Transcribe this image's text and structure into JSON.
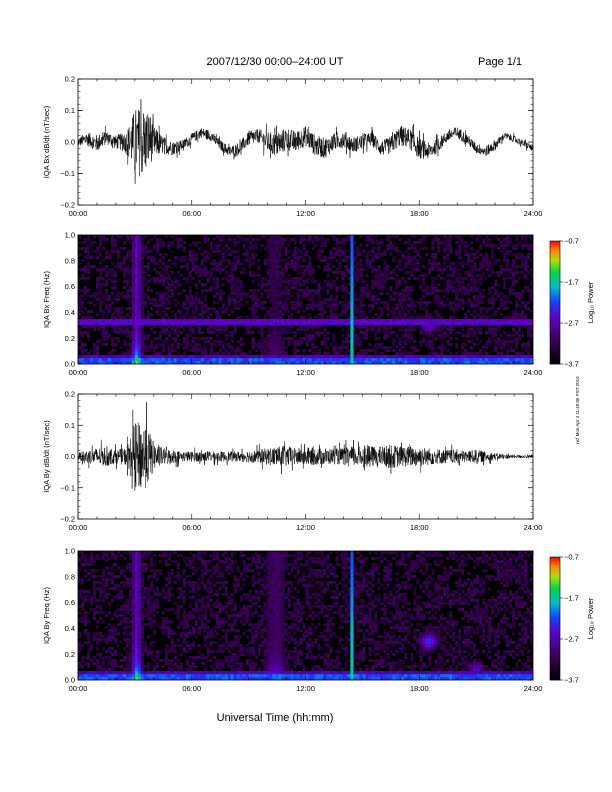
{
  "header": {
    "title": "2007/12/30  00:00–24:00 UT",
    "page_label": "Page 1/1"
  },
  "footer": {
    "xlabel": "Universal Time (hh:mm)",
    "side_note": "ncf Mon Apr 4 11:49:06 PST 2016"
  },
  "chart_data": [
    {
      "type": "line",
      "ylabel": "IQA Bx dB/dt (nT/sec)",
      "xlim": [
        0,
        24
      ],
      "ylim": [
        -0.2,
        0.2
      ],
      "x_tick_labels": [
        "00:00",
        "06:00",
        "12:00",
        "18:00",
        "24:00"
      ],
      "y_tick_labels": [
        "0.2",
        "0.1",
        "0.0",
        "−0.1",
        "−0.2"
      ],
      "series": [
        {
          "x": [
            0,
            0.5,
            1,
            1.5,
            2,
            2.5,
            2.8,
            3,
            3.2,
            3.5,
            3.8,
            4,
            4.5,
            5,
            5.5,
            6,
            6.5,
            7,
            7.5,
            8,
            8.5,
            9,
            9.5,
            10,
            10.5,
            11,
            11.5,
            12,
            12.5,
            13,
            13.5,
            14,
            14.5,
            15,
            15.5,
            16,
            16.5,
            17,
            17.5,
            18,
            18.5,
            19,
            19.5,
            20,
            20.5,
            21,
            21.5,
            22,
            22.5,
            23,
            23.5,
            24
          ],
          "amplitude": [
            0.025,
            0.04,
            0.05,
            0.04,
            0.04,
            0.06,
            0.12,
            0.2,
            0.2,
            0.2,
            0.15,
            0.09,
            0.05,
            0.04,
            0.03,
            0.03,
            0.03,
            0.03,
            0.03,
            0.03,
            0.035,
            0.04,
            0.04,
            0.06,
            0.07,
            0.07,
            0.06,
            0.06,
            0.06,
            0.06,
            0.05,
            0.05,
            0.045,
            0.045,
            0.04,
            0.045,
            0.05,
            0.06,
            0.06,
            0.06,
            0.05,
            0.04,
            0.035,
            0.035,
            0.03,
            0.03,
            0.03,
            0.03,
            0.02,
            0.02,
            0.02,
            0.02
          ],
          "trend": [
            0.0,
            0.01,
            -0.005,
            0.015,
            0.0,
            0.0,
            0.0,
            0.0,
            0.0,
            0.0,
            0.01,
            0.0,
            -0.01,
            -0.02,
            -0.01,
            0.01,
            0.03,
            0.02,
            -0.01,
            -0.03,
            -0.02,
            0.01,
            0.02,
            0.0,
            -0.01,
            0.01,
            0.0,
            0.02,
            -0.01,
            -0.02,
            0.0,
            0.01,
            -0.01,
            0.0,
            0.01,
            -0.02,
            -0.01,
            0.02,
            0.01,
            -0.02,
            -0.03,
            -0.01,
            0.02,
            0.03,
            0.01,
            -0.02,
            -0.03,
            -0.01,
            0.02,
            0.01,
            -0.005,
            -0.02
          ]
        }
      ]
    },
    {
      "type": "heatmap",
      "ylabel": "IQA Bx Freq (Hz)",
      "xlim": [
        0,
        24
      ],
      "ylim": [
        0,
        1.0
      ],
      "x_tick_labels": [
        "00:00",
        "06:00",
        "12:00",
        "18:00",
        "24:00"
      ],
      "y_tick_labels": [
        "1.0",
        "0.8",
        "0.6",
        "0.4",
        "0.2",
        "0.0"
      ],
      "colorbar": {
        "label": "Log₁₀ Power",
        "tick_labels": [
          "−0.7",
          "−1.7",
          "−2.7",
          "−3.7"
        ],
        "range": [
          -3.7,
          -0.7
        ]
      },
      "features": [
        {
          "kind": "burst",
          "time": 3.1,
          "width": 0.35,
          "strength": 1.0
        },
        {
          "kind": "burst",
          "time": 10.4,
          "width": 0.7,
          "strength": 0.45
        },
        {
          "kind": "spike",
          "time": 14.5,
          "strength": 0.85
        },
        {
          "kind": "band",
          "freq": 0.33,
          "strength": 0.35
        },
        {
          "kind": "patch",
          "time": 18.5,
          "freq": 0.3,
          "strength": 0.35
        }
      ]
    },
    {
      "type": "line",
      "ylabel": "IQA By dB/dt (nT/sec)",
      "xlim": [
        0,
        24
      ],
      "ylim": [
        -0.2,
        0.2
      ],
      "x_tick_labels": [
        "00:00",
        "06:00",
        "12:00",
        "18:00",
        "24:00"
      ],
      "y_tick_labels": [
        "0.2",
        "0.1",
        "0.0",
        "−0.1",
        "−0.2"
      ],
      "series": [
        {
          "x": [
            0,
            0.5,
            1,
            1.5,
            2,
            2.5,
            2.8,
            3,
            3.2,
            3.5,
            3.8,
            4,
            4.5,
            5,
            5.5,
            6,
            6.5,
            7,
            7.5,
            8,
            8.5,
            9,
            9.5,
            10,
            10.5,
            11,
            11.5,
            12,
            12.5,
            13,
            13.5,
            14,
            14.5,
            15,
            15.5,
            16,
            16.5,
            17,
            17.5,
            18,
            18.5,
            19,
            19.5,
            20,
            20.5,
            21,
            21.5,
            22,
            22.5,
            23,
            23.5,
            24
          ],
          "amplitude": [
            0.02,
            0.04,
            0.05,
            0.06,
            0.04,
            0.05,
            0.12,
            0.2,
            0.2,
            0.2,
            0.14,
            0.08,
            0.05,
            0.04,
            0.03,
            0.03,
            0.03,
            0.03,
            0.03,
            0.03,
            0.03,
            0.035,
            0.04,
            0.05,
            0.06,
            0.06,
            0.05,
            0.05,
            0.05,
            0.05,
            0.045,
            0.05,
            0.06,
            0.06,
            0.06,
            0.06,
            0.07,
            0.06,
            0.06,
            0.06,
            0.05,
            0.045,
            0.04,
            0.04,
            0.035,
            0.04,
            0.03,
            0.02,
            0.015,
            0.01,
            0.01,
            0.01
          ],
          "trend": [
            0,
            0,
            0,
            0,
            0,
            0,
            0,
            0,
            0,
            0,
            0,
            0,
            0,
            0,
            0,
            0,
            0,
            0,
            0,
            0,
            0,
            0,
            0,
            0,
            0,
            0,
            0,
            0,
            0,
            0,
            0,
            0,
            0,
            0,
            0,
            0,
            0,
            0,
            0,
            0,
            0,
            0,
            0,
            0,
            0,
            0,
            0,
            0,
            0,
            0,
            0,
            0
          ]
        }
      ]
    },
    {
      "type": "heatmap",
      "ylabel": "IQA By Freq (Hz)",
      "xlim": [
        0,
        24
      ],
      "ylim": [
        0,
        1.0
      ],
      "x_tick_labels": [
        "00:00",
        "06:00",
        "12:00",
        "18:00",
        "24:00"
      ],
      "y_tick_labels": [
        "1.0",
        "0.8",
        "0.6",
        "0.4",
        "0.2",
        "0.0"
      ],
      "colorbar": {
        "label": "Log₁₀ Power",
        "tick_labels": [
          "−0.7",
          "−1.7",
          "−2.7",
          "−3.7"
        ],
        "range": [
          -3.7,
          -0.7
        ]
      },
      "features": [
        {
          "kind": "burst",
          "time": 3.1,
          "width": 0.35,
          "strength": 1.0
        },
        {
          "kind": "burst",
          "time": 10.4,
          "width": 0.8,
          "strength": 0.6
        },
        {
          "kind": "spike",
          "time": 14.5,
          "strength": 0.85
        },
        {
          "kind": "patch",
          "time": 18.5,
          "freq": 0.3,
          "strength": 0.45
        },
        {
          "kind": "patch",
          "time": 21,
          "freq": 0.08,
          "strength": 0.35
        }
      ]
    }
  ]
}
